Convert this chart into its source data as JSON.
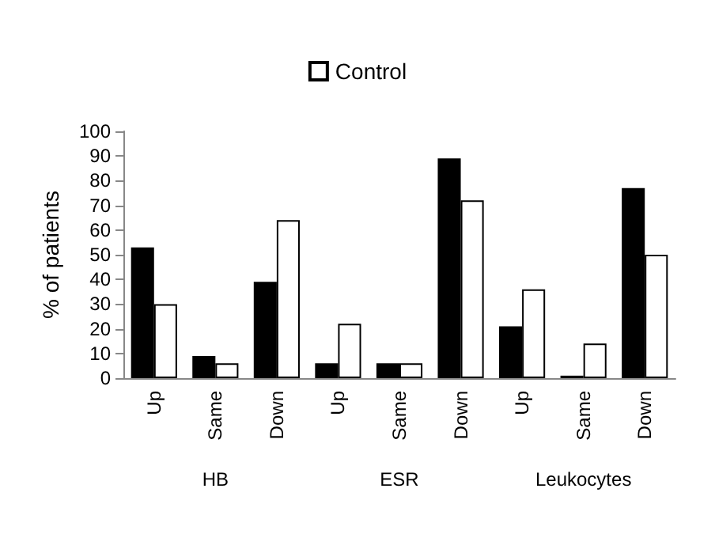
{
  "chart_data": {
    "type": "bar",
    "ylabel": "% of patients",
    "categories": [
      "Up",
      "Same",
      "Down",
      "Up",
      "Same",
      "Down",
      "Up",
      "Same",
      "Down"
    ],
    "series": [
      {
        "color": "#000000",
        "values": [
          53,
          9,
          39,
          6,
          6,
          89,
          21,
          1,
          77
        ]
      },
      {
        "name": "Control",
        "color": "#ffffff",
        "values": [
          30,
          6,
          64,
          22,
          6,
          72,
          36,
          14,
          50
        ]
      }
    ],
    "ylim": [
      0,
      100
    ],
    "yticks": [
      0,
      10,
      20,
      30,
      40,
      50,
      60,
      70,
      80,
      90,
      100
    ],
    "legend": "top",
    "grid": false,
    "annotations": [
      "HB",
      "ESR",
      "Leukocytes"
    ]
  }
}
